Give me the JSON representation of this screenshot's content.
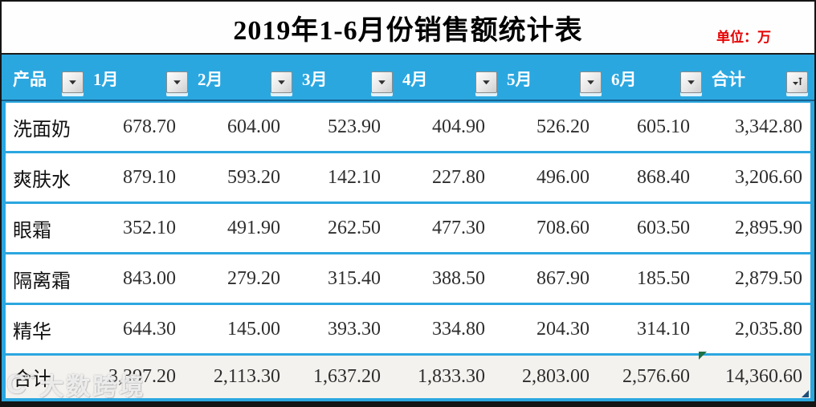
{
  "title": "2019年1-6月份销售额统计表",
  "unit_label": "单位：万",
  "watermark": {
    "logo": "C°°",
    "text": "大数跨境"
  },
  "table": {
    "columns": [
      {
        "label": "产品",
        "filter_icon": "filter-dropdown-icon"
      },
      {
        "label": "1月",
        "filter_icon": "filter-dropdown-icon"
      },
      {
        "label": "2月",
        "filter_icon": "filter-dropdown-icon"
      },
      {
        "label": "3月",
        "filter_icon": "filter-dropdown-icon"
      },
      {
        "label": "4月",
        "filter_icon": "filter-dropdown-icon"
      },
      {
        "label": "5月",
        "filter_icon": "filter-dropdown-icon"
      },
      {
        "label": "6月",
        "filter_icon": "filter-dropdown-icon"
      },
      {
        "label": "合计",
        "filter_icon": "filter-sort-icon"
      }
    ],
    "rows": [
      {
        "product": "洗面奶",
        "values": [
          "678.70",
          "604.00",
          "523.90",
          "404.90",
          "526.20",
          "605.10",
          "3,342.80"
        ]
      },
      {
        "product": "爽肤水",
        "values": [
          "879.10",
          "593.20",
          "142.10",
          "227.80",
          "496.00",
          "868.40",
          "3,206.60"
        ]
      },
      {
        "product": "眼霜",
        "values": [
          "352.10",
          "491.90",
          "262.50",
          "477.30",
          "708.60",
          "603.50",
          "2,895.90"
        ]
      },
      {
        "product": "隔离霜",
        "values": [
          "843.00",
          "279.20",
          "315.40",
          "388.50",
          "867.90",
          "185.50",
          "2,879.50"
        ]
      },
      {
        "product": "精华",
        "values": [
          "644.30",
          "145.00",
          "393.30",
          "334.80",
          "204.30",
          "314.10",
          "2,035.80"
        ]
      }
    ],
    "total_row": {
      "product": "合计",
      "values": [
        "3,397.20",
        "2,113.30",
        "1,637.20",
        "1,833.30",
        "2,803.00",
        "2,576.60",
        "14,360.60"
      ]
    }
  },
  "colors": {
    "header_blue": "#2ba7e0",
    "unit_red": "#e60000",
    "total_row_bg": "#f4f2ef",
    "error_marker_green": "#1e7145",
    "corner_handle_blue": "#1f4e79"
  }
}
